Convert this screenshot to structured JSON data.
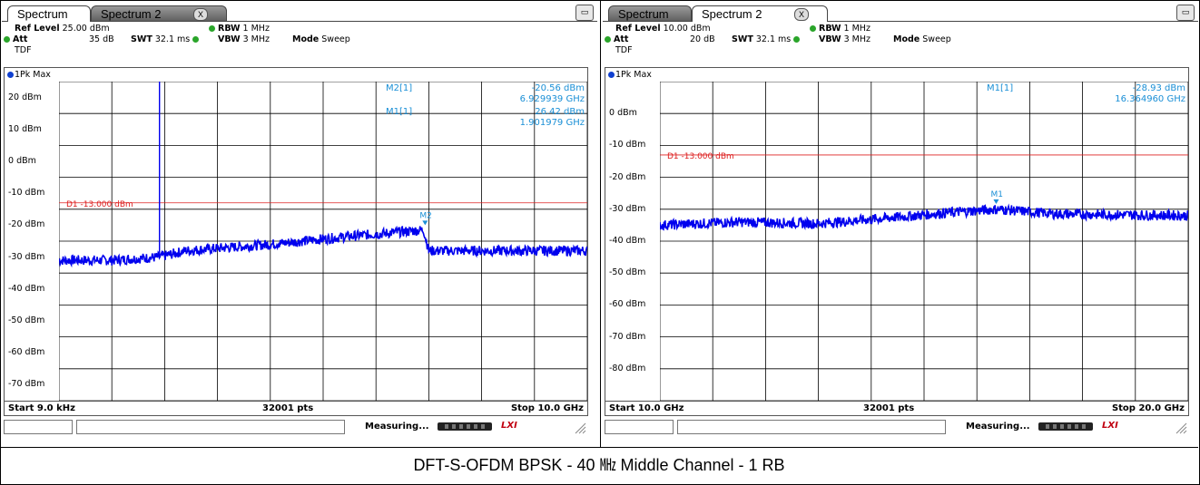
{
  "caption": "DFT-S-OFDM BPSK - 40 ㎒ Middle Channel - 1 RB",
  "colors": {
    "trace": "#0000ee",
    "limit": "#dd2020",
    "marker": "#1a8fd6",
    "grid": "#000000"
  },
  "panels": [
    {
      "tabs": [
        "Spectrum",
        "Spectrum 2"
      ],
      "active_tab": 0,
      "close_glyph": "X",
      "ref_level_label": "Ref Level",
      "ref_level": "25.00 dBm",
      "att_label": "Att",
      "att": "35 dB",
      "swt_label": "SWT",
      "swt": "32.1 ms",
      "rbw_label": "RBW",
      "rbw": "1 MHz",
      "vbw_label": "VBW",
      "vbw": "3 MHz",
      "mode_label": "Mode",
      "mode": "Sweep",
      "tdf": "TDF",
      "trace_label": "1Pk Max",
      "y_ticks": [
        "20 dBm",
        "10 dBm",
        "0 dBm",
        "-10 dBm",
        "-20 dBm",
        "-30 dBm",
        "-40 dBm",
        "-50 dBm",
        "-60 dBm",
        "-70 dBm"
      ],
      "limit_label": "D1  -13.000 dBm",
      "limit_value": -13,
      "markers": [
        {
          "name": "M2[1]",
          "level": "-20.56 dBm",
          "freq": "6.929939 GHz"
        },
        {
          "name": "M1[1]",
          "level": "26.42 dBm",
          "freq": "1.901979 GHz"
        }
      ],
      "marker_tags": [
        {
          "tag": "M1",
          "x_ghz": 1.901979,
          "y_dbm": 26.42
        },
        {
          "tag": "M2",
          "x_ghz": 6.929939,
          "y_dbm": -20.56
        }
      ],
      "start": "Start 9.0 kHz",
      "pts": "32001 pts",
      "stop": "Stop 10.0 GHz",
      "status": "Measuring...",
      "chart_data": {
        "type": "line",
        "x_unit": "GHz",
        "y_unit": "dBm",
        "xlim": [
          9e-06,
          10.0
        ],
        "ylim": [
          -75,
          25
        ],
        "noise_floor": [
          {
            "x": 0.0,
            "y": -31
          },
          {
            "x": 1.0,
            "y": -31
          },
          {
            "x": 1.9,
            "y": -30
          },
          {
            "x": 2.4,
            "y": -28
          },
          {
            "x": 4.0,
            "y": -26
          },
          {
            "x": 5.5,
            "y": -23.5
          },
          {
            "x": 6.9,
            "y": -21.5
          },
          {
            "x": 7.0,
            "y": -28
          },
          {
            "x": 10.0,
            "y": -28
          }
        ],
        "spur": {
          "x": 1.901979,
          "y": 26.42
        }
      }
    },
    {
      "tabs": [
        "Spectrum",
        "Spectrum 2"
      ],
      "active_tab": 1,
      "close_glyph": "X",
      "ref_level_label": "Ref Level",
      "ref_level": "10.00 dBm",
      "att_label": "Att",
      "att": "20 dB",
      "swt_label": "SWT",
      "swt": "32.1 ms",
      "rbw_label": "RBW",
      "rbw": "1 MHz",
      "vbw_label": "VBW",
      "vbw": "3 MHz",
      "mode_label": "Mode",
      "mode": "Sweep",
      "tdf": "TDF",
      "trace_label": "1Pk Max",
      "y_ticks": [
        "0 dBm",
        "-10 dBm",
        "-20 dBm",
        "-30 dBm",
        "-40 dBm",
        "-50 dBm",
        "-60 dBm",
        "-70 dBm",
        "-80 dBm"
      ],
      "limit_label": "D1  -13.000 dBm",
      "limit_value": -13,
      "markers": [
        {
          "name": "M1[1]",
          "level": "-28.93 dBm",
          "freq": "16.364960 GHz"
        }
      ],
      "marker_tags": [
        {
          "tag": "M1",
          "x_ghz": 16.36496,
          "y_dbm": -28.93
        }
      ],
      "start": "Start 10.0 GHz",
      "pts": "32001 pts",
      "stop": "Stop 20.0 GHz",
      "status": "Measuring...",
      "chart_data": {
        "type": "line",
        "x_unit": "GHz",
        "y_unit": "dBm",
        "xlim": [
          10.0,
          20.0
        ],
        "ylim": [
          -90,
          10
        ],
        "noise_floor": [
          {
            "x": 10.0,
            "y": -35
          },
          {
            "x": 11.5,
            "y": -34
          },
          {
            "x": 13.0,
            "y": -34.5
          },
          {
            "x": 14.5,
            "y": -32.5
          },
          {
            "x": 15.5,
            "y": -31
          },
          {
            "x": 16.4,
            "y": -30
          },
          {
            "x": 17.5,
            "y": -31.5
          },
          {
            "x": 20.0,
            "y": -32
          }
        ]
      }
    }
  ]
}
